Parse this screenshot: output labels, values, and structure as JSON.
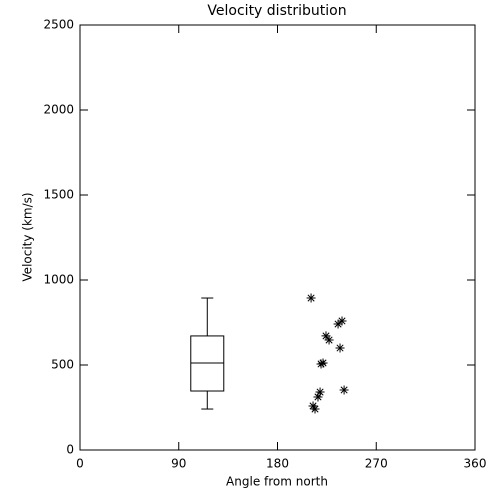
{
  "chart_data": {
    "type": "box",
    "title": "Velocity distribution",
    "x_label": "Angle from north",
    "y_label": "Velocity (km/s)",
    "xlim": [
      0,
      360
    ],
    "xticks": [
      0,
      90,
      180,
      270,
      360
    ],
    "ylim": [
      0,
      2500
    ],
    "yticks": [
      0,
      500,
      1000,
      1500,
      2000,
      2500
    ],
    "color": "#000000",
    "box": {
      "x": 116,
      "min": 241,
      "q1": 347,
      "median": 512,
      "q3": 671,
      "max": 894
    },
    "scatter": {
      "x": [
        210.6,
        224.2,
        227,
        235.2,
        238.8,
        237,
        221.5,
        219.7,
        240.7,
        218.8,
        216.9,
        212.4,
        214.2
      ],
      "y": [
        894,
        671,
        647,
        741,
        759,
        600,
        512,
        506,
        353,
        341,
        312,
        259,
        241
      ]
    }
  }
}
